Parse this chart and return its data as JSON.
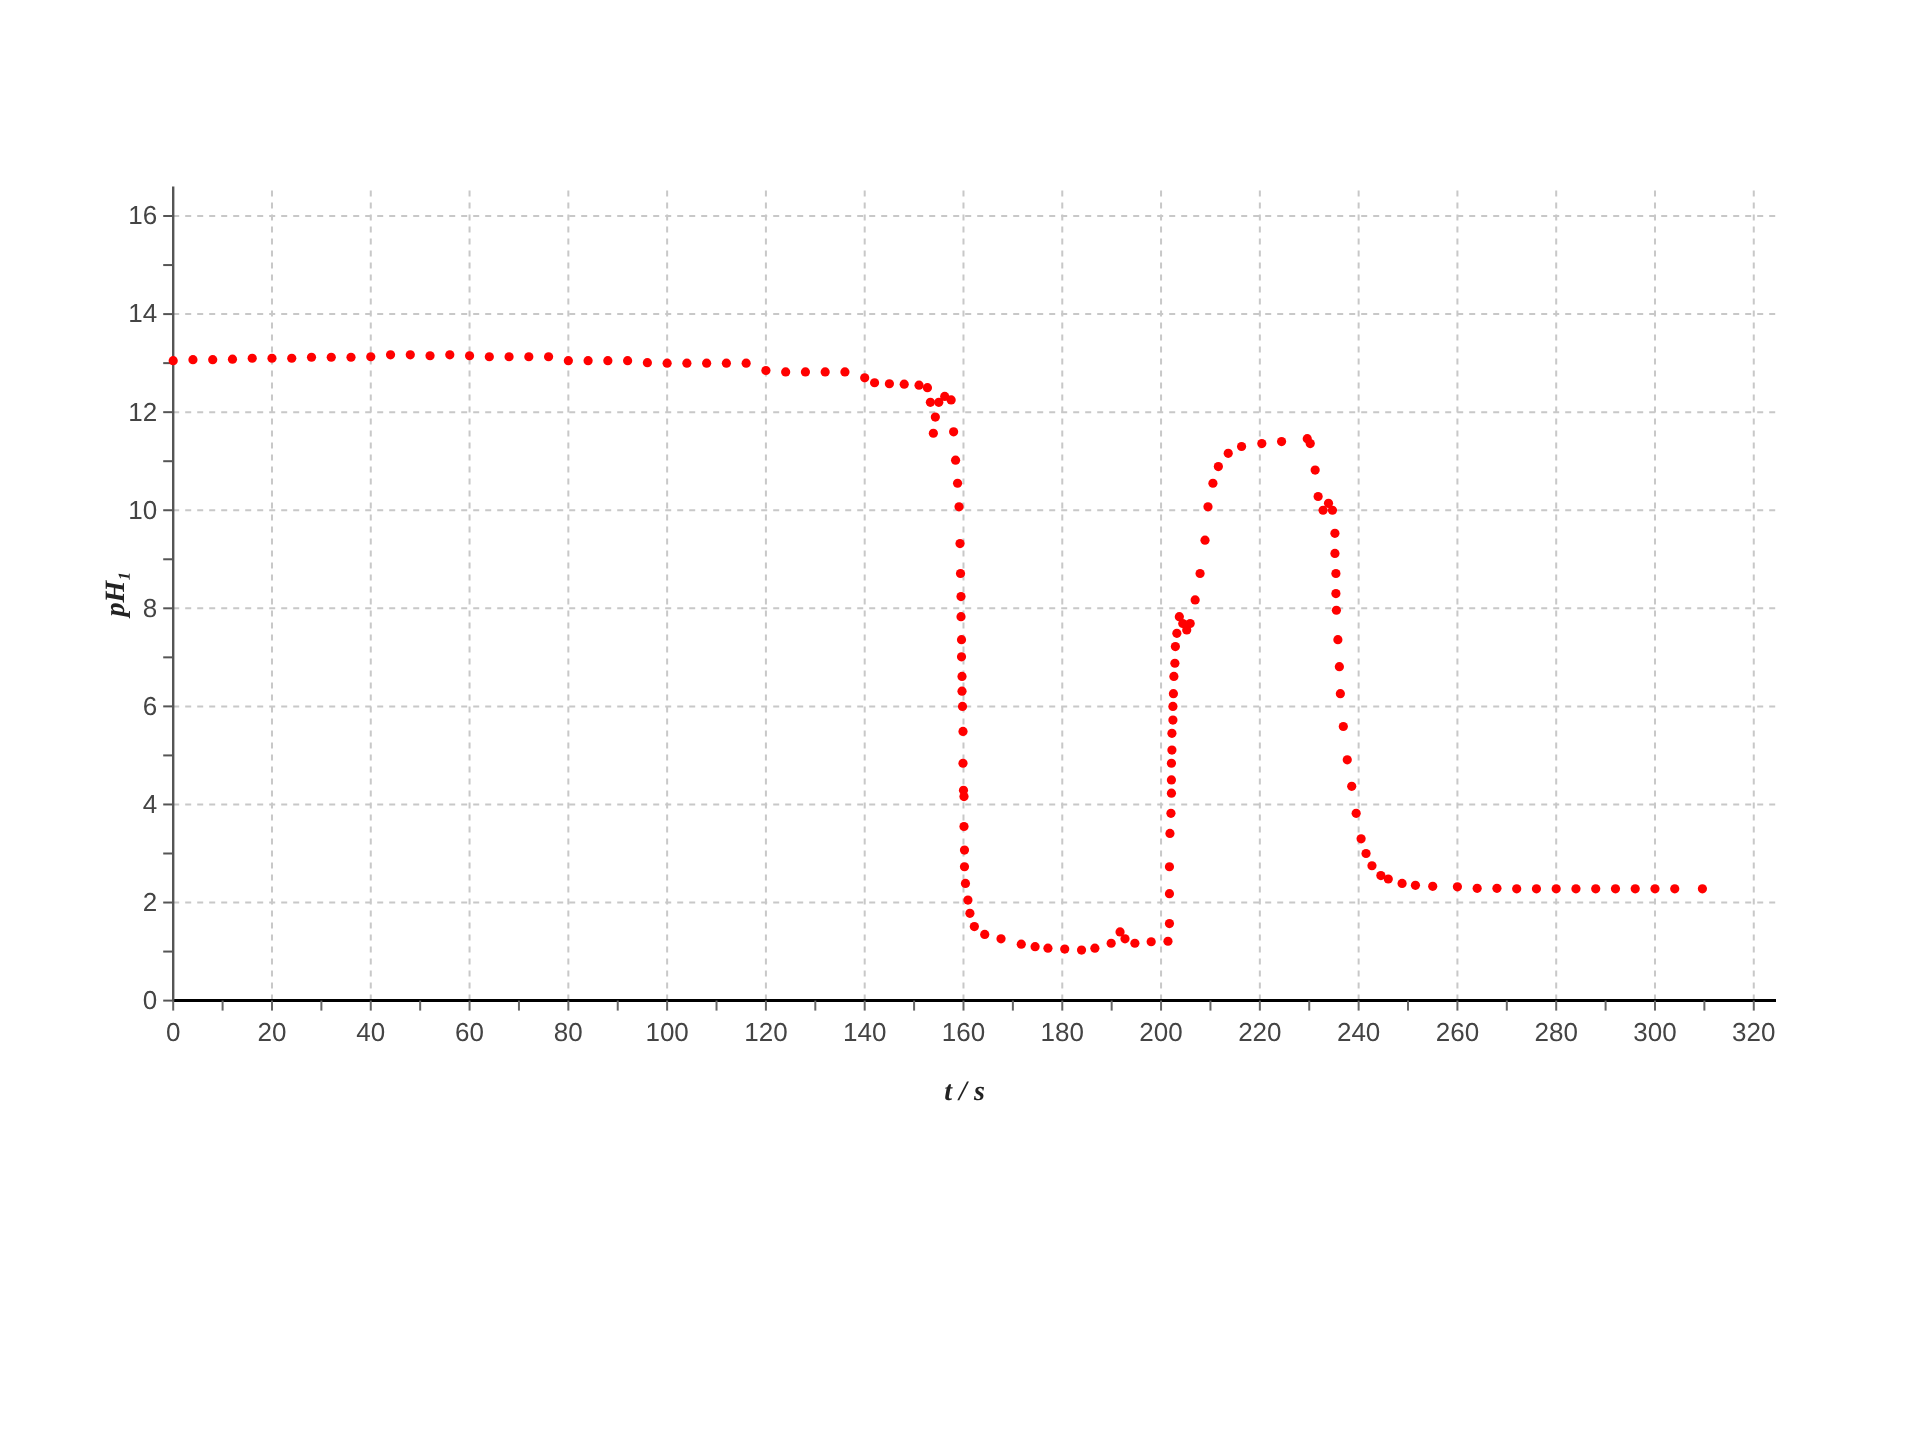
{
  "chart_data": {
    "type": "scatter",
    "xlabel": "t / s",
    "ylabel": "pH₁",
    "color": "#ff0000",
    "marker": "circle",
    "grid": true,
    "xlim": [
      0,
      324.5
    ],
    "ylim": [
      0,
      16.6
    ],
    "xticks": [
      0,
      {
        "value": 10,
        "label": null
      },
      20,
      {
        "value": 30,
        "label": null
      },
      40,
      {
        "value": 50,
        "label": null
      },
      60,
      {
        "value": 70,
        "label": null
      },
      80,
      {
        "value": 90,
        "label": null
      },
      100,
      {
        "value": 110,
        "label": null
      },
      120,
      {
        "value": 130,
        "label": null
      },
      140,
      {
        "value": 150,
        "label": null
      },
      160,
      {
        "value": 170,
        "label": null
      },
      180,
      {
        "value": 190,
        "label": null
      },
      200,
      {
        "value": 210,
        "label": null
      },
      220,
      {
        "value": 230,
        "label": null
      },
      240,
      {
        "value": 250,
        "label": null
      },
      260,
      {
        "value": 270,
        "label": null
      },
      280,
      {
        "value": 290,
        "label": null
      },
      300,
      {
        "value": 310,
        "label": null
      },
      320
    ],
    "yticks": [
      0,
      {
        "value": 1,
        "label": null
      },
      2,
      {
        "value": 3,
        "label": null
      },
      4,
      {
        "value": 5,
        "label": null
      },
      6,
      {
        "value": 7,
        "label": null
      },
      8,
      {
        "value": 9,
        "label": null
      },
      10,
      {
        "value": 11,
        "label": null
      },
      12,
      {
        "value": 13,
        "label": null
      },
      14,
      {
        "value": 15,
        "label": null
      },
      16
    ],
    "x": [
      0,
      4,
      8,
      12,
      16,
      20,
      24,
      28,
      32,
      36,
      40,
      44,
      48,
      52,
      56,
      60,
      64,
      68,
      72,
      76,
      80,
      84,
      88,
      92,
      96,
      100,
      104,
      108,
      112,
      116,
      120,
      124,
      128,
      132,
      136,
      140,
      142,
      145,
      148,
      151,
      152.7,
      153.3,
      153.9,
      154.3,
      155,
      156.2,
      157.5,
      158,
      158.4,
      158.8,
      159.1,
      159.3,
      159.4,
      159.5,
      159.5,
      159.6,
      159.6,
      159.7,
      159.7,
      159.8,
      159.9,
      159.9,
      160,
      160.1,
      160.1,
      160.2,
      160.2,
      160.4,
      160.9,
      161.3,
      162.2,
      164.3,
      167.6,
      171.7,
      174.5,
      177.1,
      180.5,
      183.9,
      186.6,
      189.9,
      191.7,
      192.7,
      194.7,
      198,
      201.4,
      201.7,
      201.7,
      201.7,
      201.8,
      202,
      202.1,
      202.1,
      202.1,
      202.2,
      202.2,
      202.4,
      202.4,
      202.5,
      202.6,
      202.8,
      202.9,
      203.2,
      203.7,
      204.4,
      205.2,
      205.9,
      206.9,
      207.9,
      208.9,
      209.5,
      210.5,
      211.6,
      213.6,
      216.3,
      220.4,
      224.4,
      229.6,
      230.2,
      231.2,
      231.8,
      232.8,
      233.9,
      234.7,
      235.2,
      235.2,
      235.4,
      235.4,
      235.5,
      235.8,
      236.1,
      236.3,
      236.9,
      237.7,
      238.6,
      239.5,
      240.5,
      241.5,
      242.7,
      244.5,
      246,
      248.8,
      251.5,
      255,
      260,
      264,
      268,
      272,
      276,
      280,
      284,
      288,
      292,
      296,
      300,
      304,
      309.6
    ],
    "values": [
      13.05,
      13.07,
      13.07,
      13.08,
      13.1,
      13.1,
      13.1,
      13.12,
      13.12,
      13.12,
      13.13,
      13.17,
      13.17,
      13.15,
      13.17,
      13.15,
      13.13,
      13.13,
      13.13,
      13.13,
      13.05,
      13.05,
      13.05,
      13.05,
      13.01,
      13,
      13,
      13,
      13,
      13,
      12.85,
      12.82,
      12.82,
      12.82,
      12.82,
      12.7,
      12.6,
      12.58,
      12.57,
      12.55,
      12.5,
      12.2,
      11.57,
      11.9,
      12.2,
      12.32,
      12.25,
      11.6,
      11.02,
      10.55,
      10.07,
      9.32,
      8.71,
      8.24,
      7.83,
      7.36,
      7.01,
      6.61,
      6.31,
      6,
      5.49,
      4.84,
      4.29,
      4.16,
      3.55,
      3.07,
      2.73,
      2.39,
      2.05,
      1.78,
      1.51,
      1.35,
      1.26,
      1.15,
      1.1,
      1.07,
      1.05,
      1.03,
      1.07,
      1.17,
      1.4,
      1.26,
      1.17,
      1.2,
      1.21,
      1.57,
      2.18,
      2.73,
      3.41,
      3.82,
      4.23,
      4.5,
      4.84,
      5.11,
      5.45,
      5.72,
      6,
      6.26,
      6.61,
      6.88,
      7.22,
      7.49,
      7.83,
      7.69,
      7.56,
      7.69,
      8.17,
      8.71,
      9.39,
      10.07,
      10.55,
      10.89,
      11.16,
      11.3,
      11.36,
      11.4,
      11.46,
      11.36,
      10.82,
      10.28,
      10,
      10.14,
      10,
      9.53,
      9.12,
      8.71,
      8.3,
      7.96,
      7.36,
      6.81,
      6.26,
      5.59,
      4.91,
      4.37,
      3.82,
      3.3,
      3,
      2.75,
      2.55,
      2.48,
      2.39,
      2.35,
      2.33,
      2.32,
      2.29,
      2.29,
      2.28,
      2.28,
      2.28,
      2.28,
      2.28,
      2.28,
      2.28,
      2.28,
      2.28,
      2.28
    ]
  }
}
